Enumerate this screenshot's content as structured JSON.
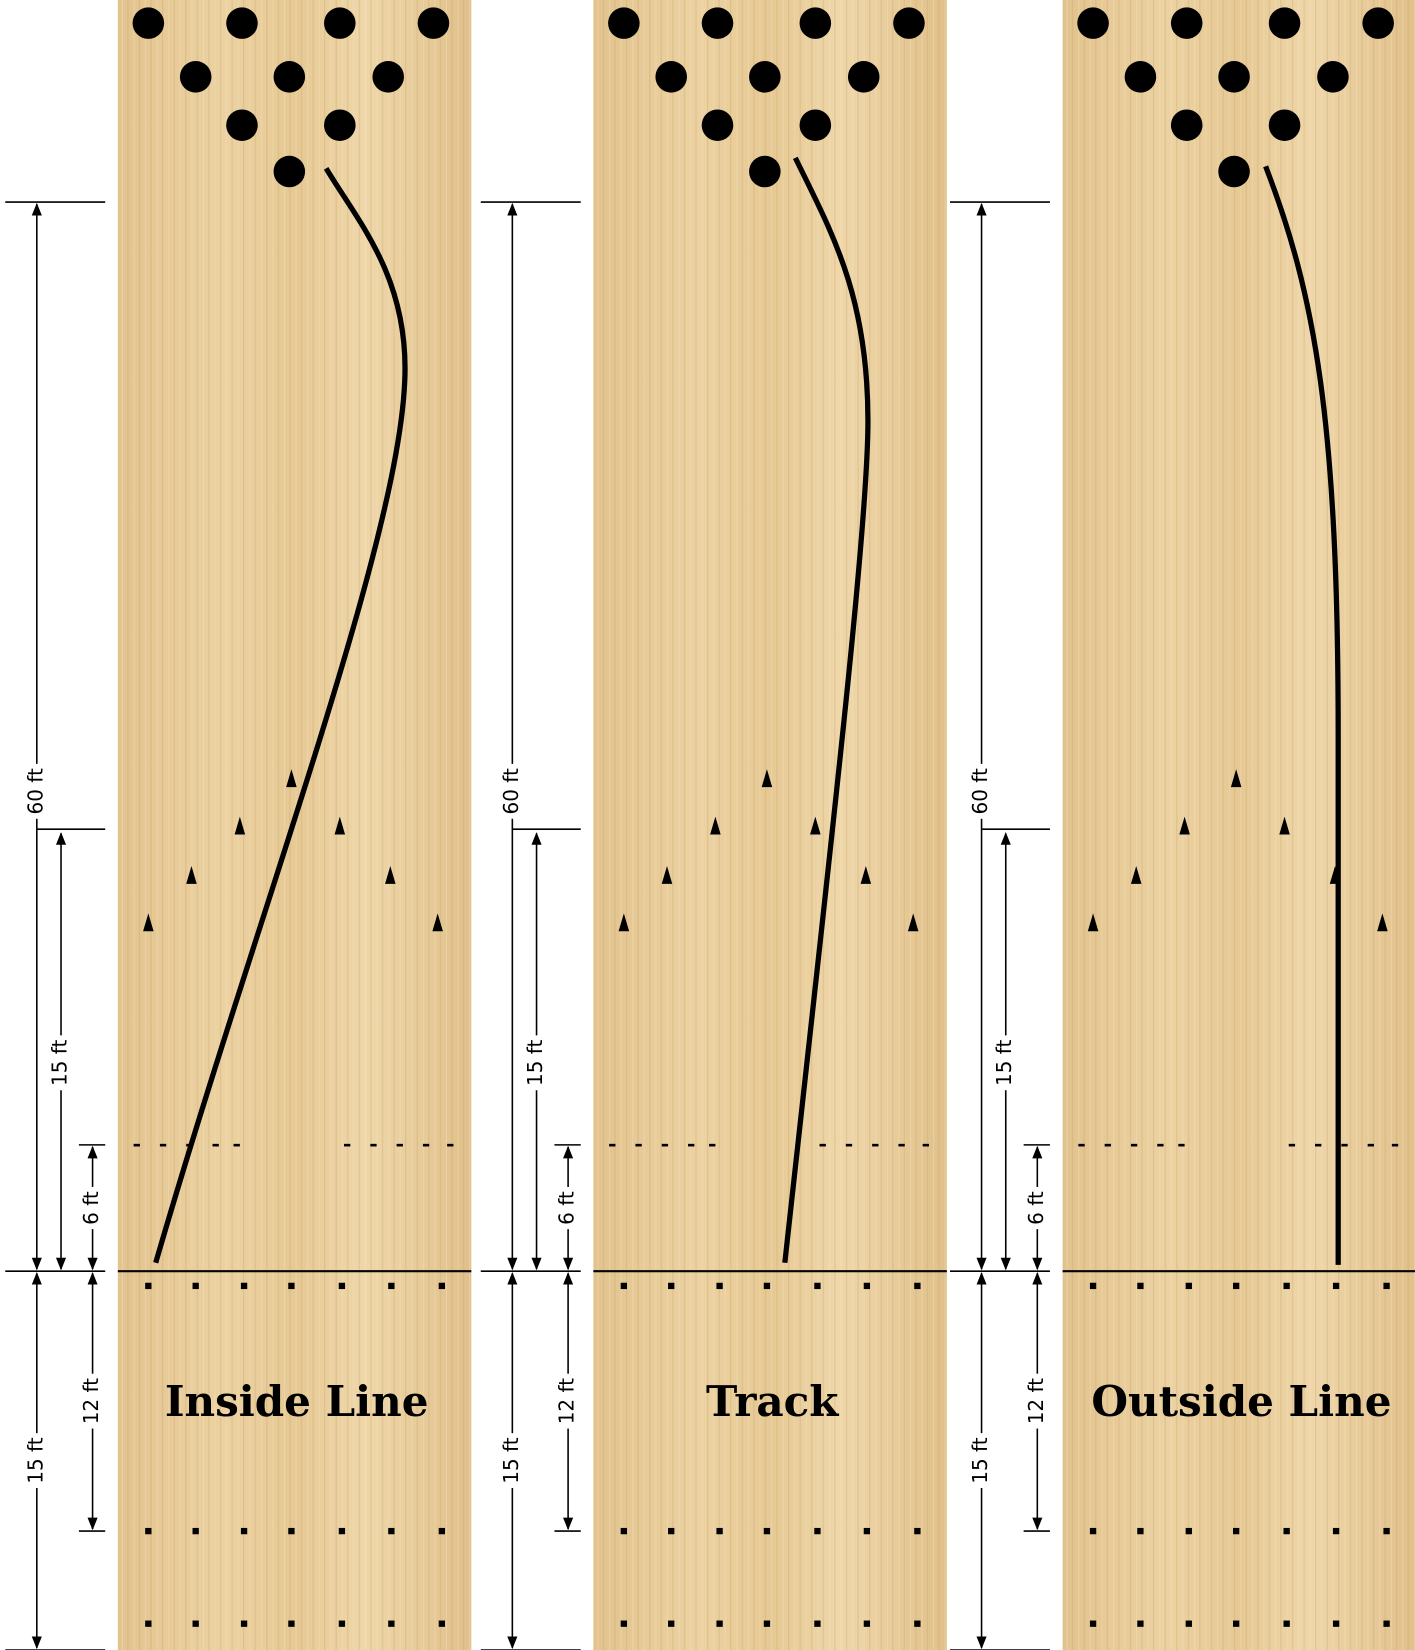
{
  "panels": [
    {
      "title": "Inside Line",
      "dimensions": [
        "60 ft",
        "15 ft",
        "6 ft",
        "15 ft",
        "12 ft"
      ]
    },
    {
      "title": "Track",
      "dimensions": [
        "60 ft",
        "15 ft",
        "6 ft",
        "15 ft",
        "12 ft"
      ]
    },
    {
      "title": "Outside Line",
      "dimensions": [
        "60 ft",
        "15 ft",
        "6 ft",
        "15 ft",
        "12 ft"
      ]
    }
  ]
}
